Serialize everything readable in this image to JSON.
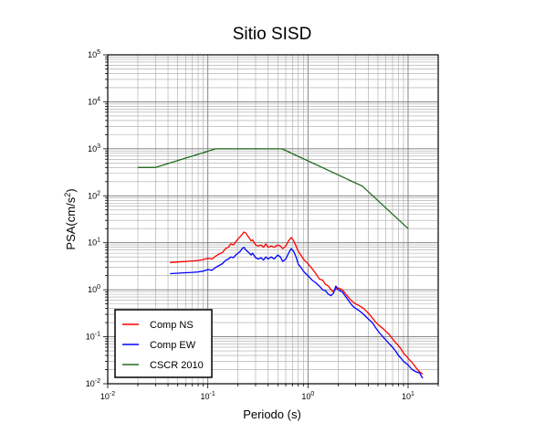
{
  "chart_data": {
    "type": "line",
    "title": "Sitio SISD",
    "xlabel": "Periodo (s)",
    "ylabel": "PSA(cm/s",
    "ylabel_sup": "2",
    "ylabel_close": ")",
    "x_scale": "log",
    "y_scale": "log",
    "xlim": [
      0.01,
      20
    ],
    "ylim": [
      0.01,
      100000
    ],
    "grid": true,
    "legend_position": "bottom-left",
    "x_ticks": [
      {
        "base": "10",
        "exp": "-2",
        "value": 0.01
      },
      {
        "base": "10",
        "exp": "-1",
        "value": 0.1
      },
      {
        "base": "10",
        "exp": "0",
        "value": 1
      },
      {
        "base": "10",
        "exp": "1",
        "value": 10
      }
    ],
    "y_ticks": [
      {
        "base": "10",
        "exp": "-2",
        "value": 0.01
      },
      {
        "base": "10",
        "exp": "-1",
        "value": 0.1
      },
      {
        "base": "10",
        "exp": "0",
        "value": 1
      },
      {
        "base": "10",
        "exp": "1",
        "value": 10
      },
      {
        "base": "10",
        "exp": "2",
        "value": 100
      },
      {
        "base": "10",
        "exp": "3",
        "value": 1000
      },
      {
        "base": "10",
        "exp": "4",
        "value": 10000
      },
      {
        "base": "10",
        "exp": "5",
        "value": 100000
      }
    ],
    "series": [
      {
        "name": "Comp NS",
        "color": "#ff0000",
        "x": [
          0.042,
          0.05,
          0.06,
          0.07,
          0.08,
          0.09,
          0.1,
          0.11,
          0.12,
          0.13,
          0.14,
          0.15,
          0.16,
          0.17,
          0.18,
          0.19,
          0.2,
          0.21,
          0.22,
          0.23,
          0.24,
          0.25,
          0.26,
          0.27,
          0.28,
          0.3,
          0.32,
          0.34,
          0.36,
          0.38,
          0.4,
          0.43,
          0.46,
          0.5,
          0.53,
          0.56,
          0.6,
          0.64,
          0.68,
          0.72,
          0.76,
          0.8,
          0.85,
          0.9,
          0.95,
          1.0,
          1.1,
          1.2,
          1.3,
          1.4,
          1.5,
          1.6,
          1.7,
          1.8,
          1.9,
          2.0,
          2.2,
          2.4,
          2.6,
          2.8,
          3.0,
          3.3,
          3.6,
          4.0,
          4.4,
          4.8,
          5.2,
          5.6,
          6.0,
          6.5,
          7.0,
          7.5,
          8.0,
          8.5,
          9.0,
          10.0,
          11.0,
          12.0,
          13.0,
          14.0
        ],
        "y": [
          3.8,
          3.9,
          4.0,
          4.1,
          4.2,
          4.4,
          4.7,
          4.5,
          5.2,
          5.8,
          6.2,
          7.5,
          8.0,
          9.5,
          9.0,
          10.5,
          12.0,
          13.5,
          15.0,
          17.0,
          16.0,
          14.0,
          12.5,
          11.0,
          11.5,
          9.0,
          8.5,
          9.0,
          8.0,
          9.5,
          8.0,
          8.5,
          8.0,
          9.0,
          8.5,
          7.5,
          8.5,
          11.0,
          13.0,
          11.0,
          8.5,
          6.5,
          5.5,
          4.5,
          4.0,
          3.6,
          2.8,
          2.2,
          1.7,
          1.6,
          1.3,
          1.2,
          1.0,
          0.9,
          1.05,
          1.1,
          1.0,
          0.8,
          0.65,
          0.55,
          0.5,
          0.45,
          0.4,
          0.32,
          0.25,
          0.2,
          0.17,
          0.15,
          0.13,
          0.11,
          0.09,
          0.075,
          0.065,
          0.055,
          0.045,
          0.035,
          0.028,
          0.022,
          0.018,
          0.016
        ]
      },
      {
        "name": "Comp EW",
        "color": "#0000ff",
        "x": [
          0.042,
          0.05,
          0.06,
          0.07,
          0.08,
          0.09,
          0.1,
          0.11,
          0.12,
          0.13,
          0.14,
          0.15,
          0.16,
          0.17,
          0.18,
          0.19,
          0.2,
          0.21,
          0.22,
          0.23,
          0.24,
          0.25,
          0.26,
          0.27,
          0.28,
          0.3,
          0.32,
          0.34,
          0.36,
          0.38,
          0.4,
          0.43,
          0.46,
          0.5,
          0.53,
          0.56,
          0.6,
          0.64,
          0.68,
          0.72,
          0.76,
          0.8,
          0.85,
          0.9,
          0.95,
          1.0,
          1.1,
          1.2,
          1.3,
          1.4,
          1.5,
          1.6,
          1.7,
          1.8,
          1.9,
          2.0,
          2.2,
          2.4,
          2.6,
          2.8,
          3.0,
          3.3,
          3.6,
          4.0,
          4.4,
          4.8,
          5.2,
          5.6,
          6.0,
          6.5,
          7.0,
          7.5,
          8.0,
          8.5,
          9.0,
          10.0,
          11.0,
          12.0,
          13.0,
          14.0
        ],
        "y": [
          2.2,
          2.25,
          2.3,
          2.35,
          2.4,
          2.5,
          2.7,
          2.6,
          3.0,
          3.3,
          3.6,
          4.2,
          4.5,
          5.0,
          4.8,
          5.5,
          6.0,
          6.5,
          7.5,
          8.0,
          7.0,
          6.5,
          6.0,
          5.5,
          6.0,
          4.8,
          4.5,
          4.8,
          4.3,
          5.0,
          4.5,
          5.0,
          4.5,
          5.5,
          5.0,
          4.0,
          4.5,
          6.0,
          7.5,
          6.5,
          5.0,
          3.5,
          3.0,
          2.5,
          2.2,
          2.0,
          1.6,
          1.4,
          1.2,
          1.0,
          0.95,
          0.8,
          0.75,
          0.85,
          1.2,
          1.0,
          0.9,
          0.7,
          0.55,
          0.45,
          0.4,
          0.35,
          0.3,
          0.24,
          0.2,
          0.15,
          0.12,
          0.1,
          0.085,
          0.07,
          0.06,
          0.05,
          0.04,
          0.035,
          0.03,
          0.025,
          0.02,
          0.018,
          0.017,
          0.013
        ]
      },
      {
        "name": "CSCR 2010",
        "color": "#1e6b1e",
        "x": [
          0.02,
          0.03,
          0.12,
          0.55,
          3.5,
          10.0
        ],
        "y": [
          400,
          400,
          1000,
          1000,
          160,
          20
        ]
      }
    ]
  }
}
